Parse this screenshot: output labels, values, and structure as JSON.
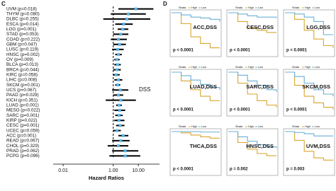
{
  "chart_data": [
    {
      "type": "forest",
      "panel": "C",
      "annotation": "DSS",
      "xlabel": "Hazard Ratios",
      "log_x": true,
      "categories": [
        "UVM (p=0.018)",
        "THYM (p=0.080)",
        "DLBC (p=0.255)",
        "ESCA (p=0.014)",
        "LGG (p=0.001)",
        "STAD (p=0.053)",
        "COAD (p=0.222)",
        "GBM (p=0.047)",
        "LUSC (p=0.119)",
        "HNSC (p=0.002)",
        "OV (p=0.009)",
        "BLCA (p=0.013)",
        "BRCA (p=0.044)",
        "KIRC (p=0.058)",
        "LIHC (p=0.008)",
        "SKCM (p=0.001)",
        "UCS (p=0.067)",
        "PAAD (p=0.029)",
        "KICH (p=0.351)",
        "LUAD (p=0.001)",
        "MESO (p=0.022)",
        "SARC (p=0.001)",
        "KIRP (p=0.022)",
        "CESC (p=0.001)",
        "UCEC (p=0.059)",
        "ACC (p=0.001)",
        "READ (p=0.067)",
        "CHOL (p=0.329)",
        "PRAD (p=0.062)",
        "PCPG (p=0.096)"
      ],
      "values": [
        8,
        4,
        3.5,
        2.6,
        2.4,
        2,
        1.6,
        1.8,
        1.5,
        1.6,
        1.4,
        1.5,
        1.4,
        1.3,
        1.6,
        1.5,
        1.9,
        1.6,
        2,
        1.7,
        1.8,
        1.7,
        1.7,
        1.9,
        1.4,
        2.5,
        2,
        1.6,
        3,
        3
      ],
      "lower": [
        1.6,
        0.8,
        0.4,
        1.2,
        1.5,
        1,
        0.8,
        1,
        0.9,
        1.2,
        1.1,
        1.1,
        1,
        1,
        1.1,
        1.2,
        0.9,
        1,
        0.5,
        1.3,
        1.1,
        1.2,
        1.1,
        1.3,
        1,
        1.6,
        0.9,
        0.6,
        0.9,
        0.7
      ],
      "upper": [
        40,
        20,
        30,
        6,
        4,
        4,
        3.5,
        3.2,
        2.6,
        2.2,
        1.8,
        2,
        2,
        1.8,
        2.3,
        1.9,
        4,
        2.5,
        8,
        2.2,
        3,
        2.4,
        2.8,
        2.8,
        2,
        4,
        4.5,
        4,
        10,
        12
      ],
      "color": "#5ab4e5",
      "ref_line": 1,
      "xlim": [
        0.004,
        70
      ],
      "xticks": [
        {
          "value": 0.01,
          "label": "0.01"
        },
        {
          "value": 1,
          "label": "1.00"
        },
        {
          "value": 10,
          "label": "10.00"
        }
      ]
    },
    {
      "type": "km",
      "panel": "D",
      "title": "ACC,DSS",
      "annotation": "p < 0.0001",
      "legend_title": "Strata",
      "categories": [
        null,
        null,
        null,
        null,
        null,
        null
      ],
      "ylim": [
        0,
        1
      ],
      "series": [
        {
          "name": "High",
          "color": "#d9a530",
          "values": [
            1,
            0.75,
            0.45,
            0.3,
            0.2,
            0.2
          ]
        },
        {
          "name": "Low",
          "color": "#6aaed6",
          "values": [
            1,
            0.95,
            0.9,
            0.88,
            0.85,
            0.8
          ]
        }
      ]
    },
    {
      "type": "km",
      "title": "CESC,DSS",
      "annotation": "p < 0.0001",
      "legend_title": "Strata",
      "categories": [
        null,
        null,
        null,
        null,
        null,
        null
      ],
      "ylim": [
        0,
        1
      ],
      "series": [
        {
          "name": "High",
          "color": "#d9a530",
          "values": [
            1,
            0.8,
            0.65,
            0.6,
            0.55,
            0.55
          ]
        },
        {
          "name": "Low",
          "color": "#6aaed6",
          "values": [
            1,
            0.97,
            0.93,
            0.9,
            0.9,
            0.88
          ]
        }
      ]
    },
    {
      "type": "km",
      "title": "LGG,DSS",
      "annotation": "p < 0.0001",
      "legend_title": "Strata",
      "categories": [
        null,
        null,
        null,
        null,
        null,
        null
      ],
      "ylim": [
        0,
        1
      ],
      "series": [
        {
          "name": "High",
          "color": "#d9a530",
          "values": [
            1,
            0.85,
            0.6,
            0.4,
            0.25,
            0.2
          ]
        },
        {
          "name": "Low",
          "color": "#6aaed6",
          "values": [
            1,
            0.97,
            0.9,
            0.8,
            0.5,
            0.5
          ]
        }
      ]
    },
    {
      "type": "km",
      "title": "LUAD,DSS",
      "annotation": "p < 0.0001",
      "legend_title": "Strata",
      "categories": [
        null,
        null,
        null,
        null,
        null,
        null
      ],
      "ylim": [
        0,
        1
      ],
      "series": [
        {
          "name": "High",
          "color": "#d9a530",
          "values": [
            1,
            0.8,
            0.6,
            0.45,
            0.35,
            0.35
          ]
        },
        {
          "name": "Low",
          "color": "#6aaed6",
          "values": [
            1,
            0.92,
            0.82,
            0.72,
            0.65,
            0.6
          ]
        }
      ]
    },
    {
      "type": "km",
      "title": "SARC,DSS",
      "annotation": "p < 0.0001",
      "legend_title": "Strata",
      "categories": [
        null,
        null,
        null,
        null,
        null,
        null
      ],
      "ylim": [
        0,
        1
      ],
      "series": [
        {
          "name": "High",
          "color": "#d9a530",
          "values": [
            1,
            0.75,
            0.5,
            0.35,
            0.25,
            0.2
          ]
        },
        {
          "name": "Low",
          "color": "#6aaed6",
          "values": [
            1,
            0.93,
            0.8,
            0.7,
            0.6,
            0.55
          ]
        }
      ]
    },
    {
      "type": "km",
      "title": "SKCM,DSS",
      "annotation": "p < 0.0001",
      "legend_title": "Strata",
      "categories": [
        null,
        null,
        null,
        null,
        null,
        null
      ],
      "ylim": [
        0,
        1
      ],
      "series": [
        {
          "name": "High",
          "color": "#d9a530",
          "values": [
            1,
            0.7,
            0.45,
            0.3,
            0.2,
            0.15
          ]
        },
        {
          "name": "Low",
          "color": "#6aaed6",
          "values": [
            1,
            0.9,
            0.75,
            0.6,
            0.5,
            0.45
          ]
        }
      ]
    },
    {
      "type": "km",
      "title": "THCA,DSS",
      "annotation": "p < 0.0001",
      "legend_title": "Strata",
      "categories": [
        null,
        null,
        null,
        null,
        null,
        null
      ],
      "ylim": [
        0,
        1
      ],
      "series": [
        {
          "name": "High",
          "color": "#d9a530",
          "values": [
            1,
            0.97,
            0.92,
            0.88,
            0.85,
            0.85
          ]
        },
        {
          "name": "Low",
          "color": "#6aaed6",
          "values": [
            1,
            1,
            1,
            0.99,
            0.99,
            0.99
          ]
        }
      ]
    },
    {
      "type": "km",
      "title": "HNSC,DSS",
      "annotation": "p = 0.002",
      "legend_title": "Strata",
      "categories": [
        null,
        null,
        null,
        null,
        null,
        null
      ],
      "ylim": [
        0,
        1
      ],
      "series": [
        {
          "name": "High",
          "color": "#d9a530",
          "values": [
            1,
            0.75,
            0.6,
            0.5,
            0.45,
            0.45
          ]
        },
        {
          "name": "Low",
          "color": "#6aaed6",
          "values": [
            1,
            0.88,
            0.78,
            0.7,
            0.65,
            0.62
          ]
        }
      ]
    },
    {
      "type": "km",
      "title": "UVM,DSS",
      "annotation": "p = 0.003",
      "legend_title": "Strata",
      "categories": [
        null,
        null,
        null,
        null,
        null,
        null
      ],
      "ylim": [
        0,
        1
      ],
      "series": [
        {
          "name": "High",
          "color": "#d9a530",
          "values": [
            1,
            0.8,
            0.55,
            0.4,
            0.35,
            0.35
          ]
        },
        {
          "name": "Low",
          "color": "#6aaed6",
          "values": [
            1,
            0.98,
            0.95,
            0.9,
            0.9,
            0.9
          ]
        }
      ]
    }
  ]
}
